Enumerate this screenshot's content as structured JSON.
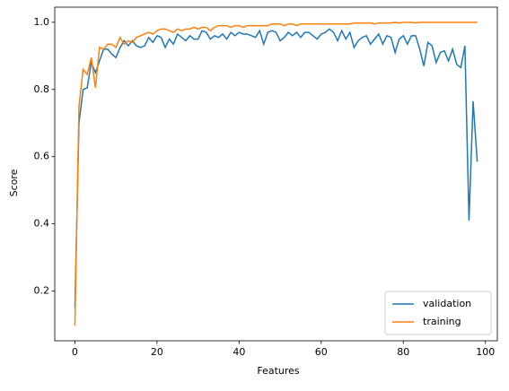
{
  "chart_data": {
    "type": "line",
    "xlabel": "Features",
    "ylabel": "Score",
    "x": [
      0,
      1,
      2,
      3,
      4,
      5,
      6,
      7,
      8,
      9,
      10,
      11,
      12,
      13,
      14,
      15,
      16,
      17,
      18,
      19,
      20,
      21,
      22,
      23,
      24,
      25,
      26,
      27,
      28,
      29,
      30,
      31,
      32,
      33,
      34,
      35,
      36,
      37,
      38,
      39,
      40,
      41,
      42,
      43,
      44,
      45,
      46,
      47,
      48,
      49,
      50,
      51,
      52,
      53,
      54,
      55,
      56,
      57,
      58,
      59,
      60,
      61,
      62,
      63,
      64,
      65,
      66,
      67,
      68,
      69,
      70,
      71,
      72,
      73,
      74,
      75,
      76,
      77,
      78,
      79,
      80,
      81,
      82,
      83,
      84,
      85,
      86,
      87,
      88,
      89,
      90,
      91,
      92,
      93,
      94,
      95,
      96,
      97,
      98
    ],
    "series": [
      {
        "name": "validation",
        "color": "#1f77b4",
        "values": [
          0.15,
          0.7,
          0.8,
          0.805,
          0.88,
          0.85,
          0.885,
          0.92,
          0.92,
          0.905,
          0.895,
          0.925,
          0.945,
          0.93,
          0.945,
          0.93,
          0.925,
          0.93,
          0.955,
          0.94,
          0.96,
          0.955,
          0.925,
          0.95,
          0.935,
          0.965,
          0.955,
          0.945,
          0.96,
          0.95,
          0.95,
          0.975,
          0.97,
          0.95,
          0.96,
          0.955,
          0.965,
          0.95,
          0.97,
          0.96,
          0.97,
          0.965,
          0.965,
          0.96,
          0.955,
          0.975,
          0.935,
          0.97,
          0.975,
          0.97,
          0.945,
          0.955,
          0.97,
          0.96,
          0.97,
          0.955,
          0.97,
          0.97,
          0.96,
          0.95,
          0.965,
          0.97,
          0.98,
          0.97,
          0.945,
          0.975,
          0.95,
          0.97,
          0.925,
          0.945,
          0.955,
          0.96,
          0.935,
          0.95,
          0.965,
          0.935,
          0.96,
          0.955,
          0.91,
          0.95,
          0.96,
          0.935,
          0.96,
          0.96,
          0.92,
          0.87,
          0.94,
          0.93,
          0.88,
          0.91,
          0.915,
          0.885,
          0.92,
          0.875,
          0.865,
          0.93,
          0.41,
          0.765,
          0.585
        ]
      },
      {
        "name": "training",
        "color": "#ff7f0e",
        "values": [
          0.097,
          0.75,
          0.86,
          0.845,
          0.895,
          0.805,
          0.925,
          0.92,
          0.935,
          0.935,
          0.925,
          0.955,
          0.935,
          0.945,
          0.94,
          0.955,
          0.96,
          0.965,
          0.97,
          0.965,
          0.975,
          0.98,
          0.98,
          0.975,
          0.97,
          0.98,
          0.975,
          0.98,
          0.98,
          0.985,
          0.98,
          0.985,
          0.985,
          0.975,
          0.985,
          0.99,
          0.99,
          0.99,
          0.985,
          0.99,
          0.99,
          0.985,
          0.99,
          0.99,
          0.99,
          0.99,
          0.99,
          0.99,
          0.995,
          0.995,
          0.995,
          0.99,
          0.995,
          0.995,
          0.99,
          0.995,
          0.995,
          0.995,
          0.995,
          0.995,
          0.995,
          0.995,
          0.995,
          0.995,
          0.995,
          0.995,
          0.995,
          0.995,
          0.998,
          0.998,
          0.998,
          0.998,
          0.998,
          0.995,
          0.998,
          0.998,
          0.998,
          0.998,
          1.0,
          0.998,
          1.0,
          1.0,
          1.0,
          0.998,
          1.0,
          1.0,
          1.0,
          1.0,
          1.0,
          1.0,
          1.0,
          1.0,
          1.0,
          1.0,
          1.0,
          1.0,
          1.0,
          1.0,
          1.0
        ]
      }
    ],
    "xlim": [
      -4.9,
      102.9
    ],
    "xticks": [
      0,
      20,
      40,
      60,
      80,
      100
    ],
    "ylim": [
      0.052,
      1.045
    ],
    "yticks": [
      0.2,
      0.4,
      0.6,
      0.8,
      {
        "value": 1,
        "label": "1.0"
      }
    ],
    "legend": "lower right"
  }
}
